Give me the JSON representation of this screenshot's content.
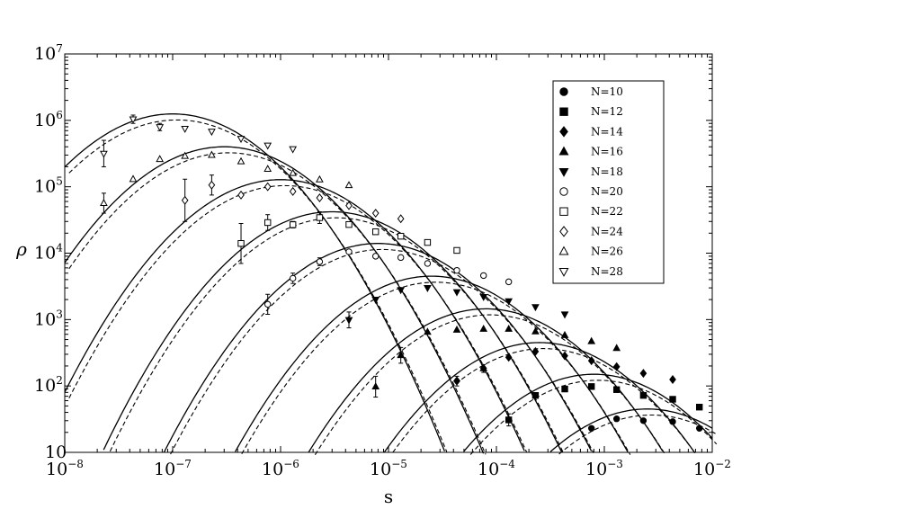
{
  "chart_data": {
    "type": "scatter",
    "title": "",
    "xlabel": "s",
    "ylabel": "ρ",
    "xscale": "log",
    "yscale": "log",
    "xlim": [
      1e-08,
      0.01
    ],
    "ylim": [
      10,
      10000000
    ],
    "x_tick_labels": [
      {
        "base": "10",
        "exp": "−8"
      },
      {
        "base": "10",
        "exp": "−7"
      },
      {
        "base": "10",
        "exp": "−6"
      },
      {
        "base": "10",
        "exp": "−5"
      },
      {
        "base": "10",
        "exp": "−4"
      },
      {
        "base": "10",
        "exp": "−3"
      },
      {
        "base": "10",
        "exp": "−2"
      }
    ],
    "y_tick_labels": [
      {
        "base": "10",
        "exp": ""
      },
      {
        "base": "10",
        "exp": "2"
      },
      {
        "base": "10",
        "exp": "3"
      },
      {
        "base": "10",
        "exp": "4"
      },
      {
        "base": "10",
        "exp": "5"
      },
      {
        "base": "10",
        "exp": "6"
      },
      {
        "base": "10",
        "exp": "7"
      }
    ],
    "grid": false,
    "legend_position": "top-right",
    "series": [
      {
        "name": "N=10",
        "marker": "circle-filled",
        "points": [
          [
            0.00076,
            23
          ],
          [
            0.0013,
            32
          ],
          [
            0.0023,
            30
          ],
          [
            0.0043,
            29
          ],
          [
            0.0076,
            23
          ]
        ],
        "errors": []
      },
      {
        "name": "N=12",
        "marker": "square-filled",
        "points": [
          [
            0.00023,
            72
          ],
          [
            0.00043,
            90
          ],
          [
            0.00076,
            98
          ],
          [
            0.0013,
            88
          ],
          [
            0.0023,
            72
          ],
          [
            0.0043,
            63
          ],
          [
            0.0076,
            48
          ]
        ],
        "errors": [
          [
            0.00013,
            25,
            38
          ]
        ]
      },
      {
        "name": "N=14",
        "marker": "diamond-filled",
        "points": [
          [
            4.3e-05,
            120
          ],
          [
            7.6e-05,
            185
          ],
          [
            0.00013,
            270
          ],
          [
            0.00023,
            330
          ],
          [
            0.00043,
            285
          ],
          [
            0.00076,
            240
          ],
          [
            0.0013,
            195
          ],
          [
            0.0023,
            155
          ],
          [
            0.0043,
            125
          ]
        ],
        "errors": [
          [
            4.3e-05,
            100,
            140
          ]
        ]
      },
      {
        "name": "N=16",
        "marker": "triangle-up-filled",
        "points": [
          [
            2.3e-05,
            650
          ],
          [
            4.3e-05,
            700
          ],
          [
            7.6e-05,
            720
          ],
          [
            0.00013,
            720
          ],
          [
            0.00023,
            660
          ],
          [
            0.00043,
            580
          ],
          [
            0.00076,
            470
          ],
          [
            0.0013,
            370
          ]
        ],
        "errors": [
          [
            7.6e-06,
            68,
            140
          ],
          [
            1.3e-05,
            220,
            380
          ],
          [
            7.6e-05,
            160,
            210
          ]
        ]
      },
      {
        "name": "N=18",
        "marker": "triangle-down-filled",
        "points": [
          [
            7.6e-06,
            2000
          ],
          [
            1.3e-05,
            2800
          ],
          [
            2.3e-05,
            3000
          ],
          [
            4.3e-05,
            2600
          ],
          [
            7.6e-05,
            2200
          ],
          [
            0.00013,
            1900
          ],
          [
            0.00023,
            1550
          ],
          [
            0.00043,
            1200
          ]
        ],
        "errors": [
          [
            4.3e-06,
            750,
            1300
          ]
        ]
      },
      {
        "name": "N=20",
        "marker": "circle-open",
        "points": [
          [
            4.3e-06,
            10500
          ],
          [
            7.6e-06,
            9000
          ],
          [
            1.3e-05,
            8600
          ],
          [
            2.3e-05,
            7000
          ],
          [
            4.3e-05,
            5500
          ],
          [
            7.6e-05,
            4600
          ],
          [
            0.00013,
            3700
          ]
        ],
        "errors": [
          [
            7.6e-07,
            1200,
            2400
          ],
          [
            1.3e-06,
            3500,
            5000
          ],
          [
            2.3e-06,
            6500,
            8500
          ]
        ]
      },
      {
        "name": "N=22",
        "marker": "square-open",
        "points": [
          [
            4.3e-06,
            27000
          ],
          [
            7.6e-06,
            21000
          ],
          [
            1.3e-05,
            18000
          ],
          [
            2.3e-05,
            14500
          ],
          [
            4.3e-05,
            11000
          ]
        ],
        "errors": [
          [
            4.3e-07,
            7000,
            28000
          ],
          [
            7.6e-07,
            22000,
            38000
          ],
          [
            1.3e-06,
            24000,
            30000
          ],
          [
            2.3e-06,
            28000,
            42000
          ]
        ]
      },
      {
        "name": "N=24",
        "marker": "diamond-open",
        "points": [
          [
            4.3e-07,
            75000
          ],
          [
            7.6e-07,
            100000
          ],
          [
            1.3e-06,
            85000
          ],
          [
            2.3e-06,
            68000
          ],
          [
            4.3e-06,
            52000
          ],
          [
            7.6e-06,
            40000
          ],
          [
            1.3e-05,
            33000
          ]
        ],
        "errors": [
          [
            1.3e-07,
            30000,
            130000
          ],
          [
            2.3e-07,
            75000,
            150000
          ]
        ]
      },
      {
        "name": "N=26",
        "marker": "triangle-up-open",
        "points": [
          [
            4.3e-08,
            130000
          ],
          [
            7.6e-08,
            260000
          ],
          [
            1.3e-07,
            290000
          ],
          [
            2.3e-07,
            300000
          ],
          [
            4.3e-07,
            240000
          ],
          [
            7.6e-07,
            185000
          ],
          [
            1.3e-06,
            160000
          ],
          [
            2.3e-06,
            128000
          ],
          [
            4.3e-06,
            105000
          ]
        ],
        "errors": [
          [
            2.3e-08,
            40000,
            80000
          ]
        ]
      },
      {
        "name": "N=28",
        "marker": "triangle-down-open",
        "points": [
          [
            1.3e-07,
            750000
          ],
          [
            2.3e-07,
            680000
          ],
          [
            4.3e-07,
            530000
          ],
          [
            7.6e-07,
            420000
          ],
          [
            1.3e-06,
            370000
          ]
        ],
        "errors": [
          [
            2.3e-08,
            200000,
            500000
          ],
          [
            4.3e-08,
            900000,
            1200000
          ],
          [
            7.6e-08,
            700000,
            900000
          ]
        ]
      }
    ],
    "curves_solid": [
      {
        "peak_s": 1e-07,
        "peak_rho": 1250000.0
      },
      {
        "peak_s": 3e-07,
        "peak_rho": 400000
      },
      {
        "peak_s": 1e-06,
        "peak_rho": 128000
      },
      {
        "peak_s": 3e-06,
        "peak_rho": 42000
      },
      {
        "peak_s": 8e-06,
        "peak_rho": 14000
      },
      {
        "peak_s": 2.5e-05,
        "peak_rho": 4500
      },
      {
        "peak_s": 8e-05,
        "peak_rho": 1450
      },
      {
        "peak_s": 0.00025,
        "peak_rho": 450
      },
      {
        "peak_s": 0.0008,
        "peak_rho": 150
      },
      {
        "peak_s": 0.0025,
        "peak_rho": 45
      }
    ]
  }
}
